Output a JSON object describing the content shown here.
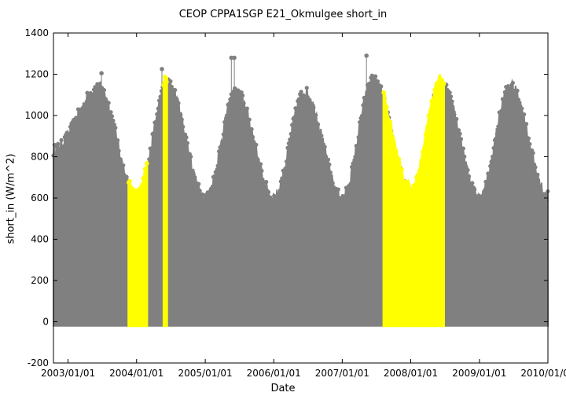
{
  "chart_data": {
    "type": "scatter",
    "title": "CEOP CPPA1SGP E21_Okmulgee  short_in",
    "xlabel": "Date",
    "ylabel": "short_in (W/m^2)",
    "xlim": [
      "2002-10-15",
      "2010-01-01"
    ],
    "ylim": [
      -200,
      1400
    ],
    "x_ticks": [
      "2003/01/01",
      "2004/01/01",
      "2005/01/01",
      "2006/01/01",
      "2007/01/01",
      "2008/01/01",
      "2009/01/01",
      "2010/01/01"
    ],
    "y_ticks": [
      -200,
      0,
      200,
      400,
      600,
      800,
      1000,
      1200,
      1400
    ],
    "grid": false,
    "legend": "none",
    "series": [
      {
        "color": "#808080",
        "x": [
          "2002-10-15",
          "2003-06-15",
          "2004-01-01",
          "2004-06-15",
          "2005-01-01",
          "2005-06-15",
          "2006-01-01",
          "2006-06-15",
          "2007-01-01",
          "2007-06-15",
          "2008-01-01",
          "2008-06-15",
          "2009-01-01",
          "2009-06-15",
          "2010-01-01"
        ],
        "daily_max": [
          830,
          1130,
          590,
          1150,
          600,
          1110,
          600,
          1110,
          600,
          1170,
          620,
          1150,
          600,
          1140,
          610
        ],
        "peak_outliers": [
          {
            "x": "2003-06-28",
            "y": 1205
          },
          {
            "x": "2004-05-15",
            "y": 1225
          },
          {
            "x": "2005-05-20",
            "y": 1280
          },
          {
            "x": "2005-06-05",
            "y": 1280
          },
          {
            "x": "2007-05-10",
            "y": 1290
          }
        ],
        "min": -20
      },
      {
        "color": "#ffff00",
        "segments": [
          {
            "start": "2003-11-20",
            "end": "2004-02-25",
            "daily_max_start": 725,
            "daily_max_end": 785
          },
          {
            "start": "2004-05-25",
            "end": "2004-06-10",
            "daily_max": 1150
          },
          {
            "start": "2007-08-10",
            "end": "2008-06-25",
            "daily_max_start": 1120,
            "daily_max_end": 1240
          }
        ],
        "min": -20
      }
    ]
  }
}
